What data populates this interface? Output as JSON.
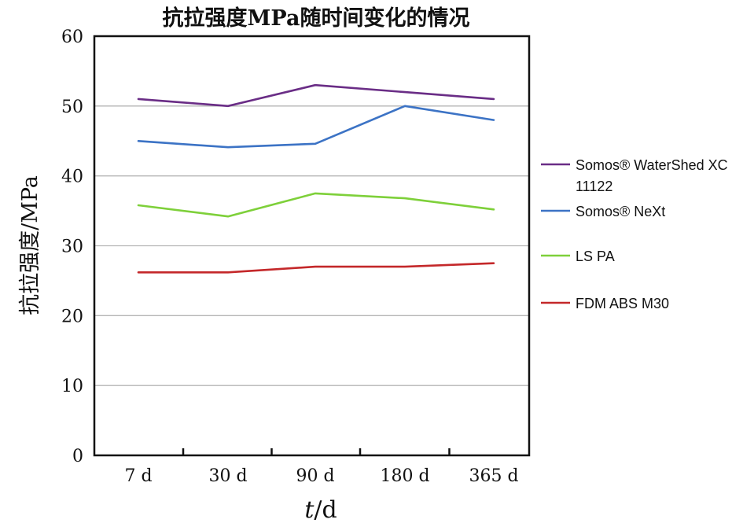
{
  "chart_data": {
    "type": "line",
    "title": "抗拉强度MPa随时间变化的情况",
    "xlabel_italic": "t",
    "xlabel_rest": "/d",
    "ylabel": "抗拉强度/MPa",
    "categories": [
      "7 d",
      "30 d",
      "90 d",
      "180 d",
      "365 d"
    ],
    "ylim": [
      0,
      60
    ],
    "yticks": [
      "0",
      "10",
      "20",
      "30",
      "40",
      "50",
      "60"
    ],
    "grid": true,
    "legend_position": "right",
    "series": [
      {
        "name_lines": [
          "Somos® WaterShed XC",
          "11122"
        ],
        "color": "#6a2d86",
        "values": [
          51,
          50,
          53,
          52,
          51
        ]
      },
      {
        "name_lines": [
          "Somos® NeXt"
        ],
        "color": "#3c73c5",
        "values": [
          45,
          44.1,
          44.6,
          50,
          48
        ]
      },
      {
        "name_lines": [
          "LS PA"
        ],
        "color": "#7ed03a",
        "values": [
          35.8,
          34.2,
          37.5,
          36.8,
          35.2
        ]
      },
      {
        "name_lines": [
          "FDM ABS M30"
        ],
        "color": "#c4282a",
        "values": [
          26.2,
          26.2,
          27,
          27,
          27.5
        ]
      }
    ]
  }
}
